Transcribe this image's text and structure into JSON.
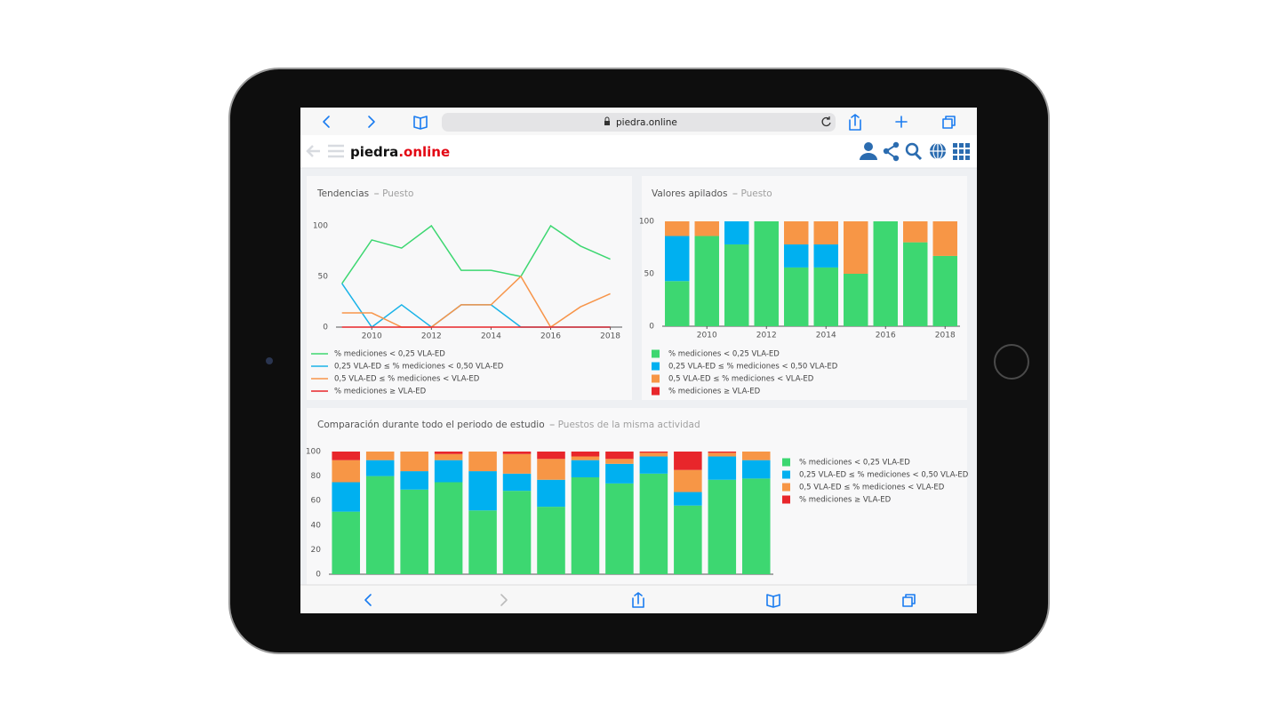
{
  "browser": {
    "url": "piedra.online"
  },
  "header": {
    "logo_main": "piedra",
    "logo_accent": ".online"
  },
  "chart_data": [
    {
      "type": "line",
      "title": "Tendencias",
      "subtitle": "Puesto",
      "x": [
        2009,
        2010,
        2011,
        2012,
        2013,
        2014,
        2015,
        2016,
        2017,
        2018
      ],
      "xlim": [
        2008.8,
        2018.4
      ],
      "xticks": [
        2010,
        2012,
        2014,
        2016,
        2018
      ],
      "ylim": [
        0,
        100
      ],
      "yticks": [
        0,
        50,
        100
      ],
      "grid": false,
      "legend": "bottom",
      "series": [
        {
          "name": "% mediciones < 0,25 VLA-ED",
          "color": "#3dd771",
          "values": [
            43,
            86,
            78,
            100,
            56,
            56,
            50,
            100,
            80,
            67
          ]
        },
        {
          "name": "0,25 VLA-ED ≤ % mediciones < 0,50 VLA-ED",
          "color": "#1ab3e8",
          "values": [
            43,
            0,
            22,
            0,
            22,
            22,
            0,
            0,
            0,
            0
          ]
        },
        {
          "name": "0,5 VLA-ED ≤ % mediciones < VLA-ED",
          "color": "#f7954a",
          "values": [
            14,
            14,
            0,
            0,
            22,
            22,
            50,
            0,
            20,
            33
          ]
        },
        {
          "name": "% mediciones ≥ VLA-ED",
          "color": "#e8262b",
          "values": [
            0,
            0,
            0,
            0,
            0,
            0,
            0,
            0,
            0,
            0
          ]
        }
      ]
    },
    {
      "type": "bar",
      "stacked": true,
      "title": "Valores apilados",
      "subtitle": "Puesto",
      "x": [
        2009,
        2010,
        2011,
        2012,
        2013,
        2014,
        2015,
        2016,
        2017,
        2018
      ],
      "xlim": [
        2008.5,
        2018.5
      ],
      "xticks": [
        2010,
        2012,
        2014,
        2016,
        2018
      ],
      "ylim": [
        0,
        100
      ],
      "yticks": [
        0,
        50,
        100
      ],
      "grid": false,
      "legend": "bottom",
      "series": [
        {
          "name": "% mediciones < 0,25 VLA-ED",
          "color": "#3dd771",
          "values": [
            43,
            86,
            78,
            100,
            56,
            56,
            50,
            100,
            80,
            67
          ]
        },
        {
          "name": "0,25 VLA-ED ≤ % mediciones < 0,50 VLA-ED",
          "color": "#00b0f0",
          "values": [
            43,
            0,
            22,
            0,
            22,
            22,
            0,
            0,
            0,
            0
          ]
        },
        {
          "name": "0,5 VLA-ED ≤ % mediciones < VLA-ED",
          "color": "#f79646",
          "values": [
            14,
            14,
            0,
            0,
            22,
            22,
            50,
            0,
            20,
            33
          ]
        },
        {
          "name": "% mediciones ≥ VLA-ED",
          "color": "#e8262b",
          "values": [
            0,
            0,
            0,
            0,
            0,
            0,
            0,
            0,
            0,
            0
          ]
        }
      ]
    },
    {
      "type": "bar",
      "stacked": true,
      "title": "Comparación durante todo el periodo de estudio",
      "subtitle": "Puestos de la misma actividad",
      "categories": [
        null,
        null,
        null,
        null,
        null,
        null,
        null,
        null,
        null,
        null,
        null,
        null,
        null
      ],
      "ylim": [
        0,
        100
      ],
      "yticks": [
        0,
        20,
        40,
        60,
        80,
        100
      ],
      "grid": false,
      "legend": "right",
      "series": [
        {
          "name": "% mediciones < 0,25 VLA-ED",
          "color": "#3dd771",
          "values": [
            51,
            80,
            69,
            75,
            52,
            68,
            55,
            79,
            74,
            82,
            56,
            77,
            78
          ]
        },
        {
          "name": "0,25 VLA-ED ≤ % mediciones < 0,50 VLA-ED",
          "color": "#00b0f0",
          "values": [
            24,
            13,
            15,
            18,
            32,
            14,
            22,
            14,
            16,
            14,
            11,
            19,
            15
          ]
        },
        {
          "name": "0,5 VLA-ED ≤ % mediciones < VLA-ED",
          "color": "#f79646",
          "values": [
            18,
            7,
            16,
            5,
            16,
            16,
            17,
            3,
            4,
            3,
            18,
            3,
            7
          ]
        },
        {
          "name": "% mediciones ≥ VLA-ED",
          "color": "#e8262b",
          "values": [
            7,
            0,
            0,
            2,
            0,
            2,
            6,
            4,
            6,
            1,
            15,
            1,
            0
          ]
        }
      ]
    }
  ]
}
